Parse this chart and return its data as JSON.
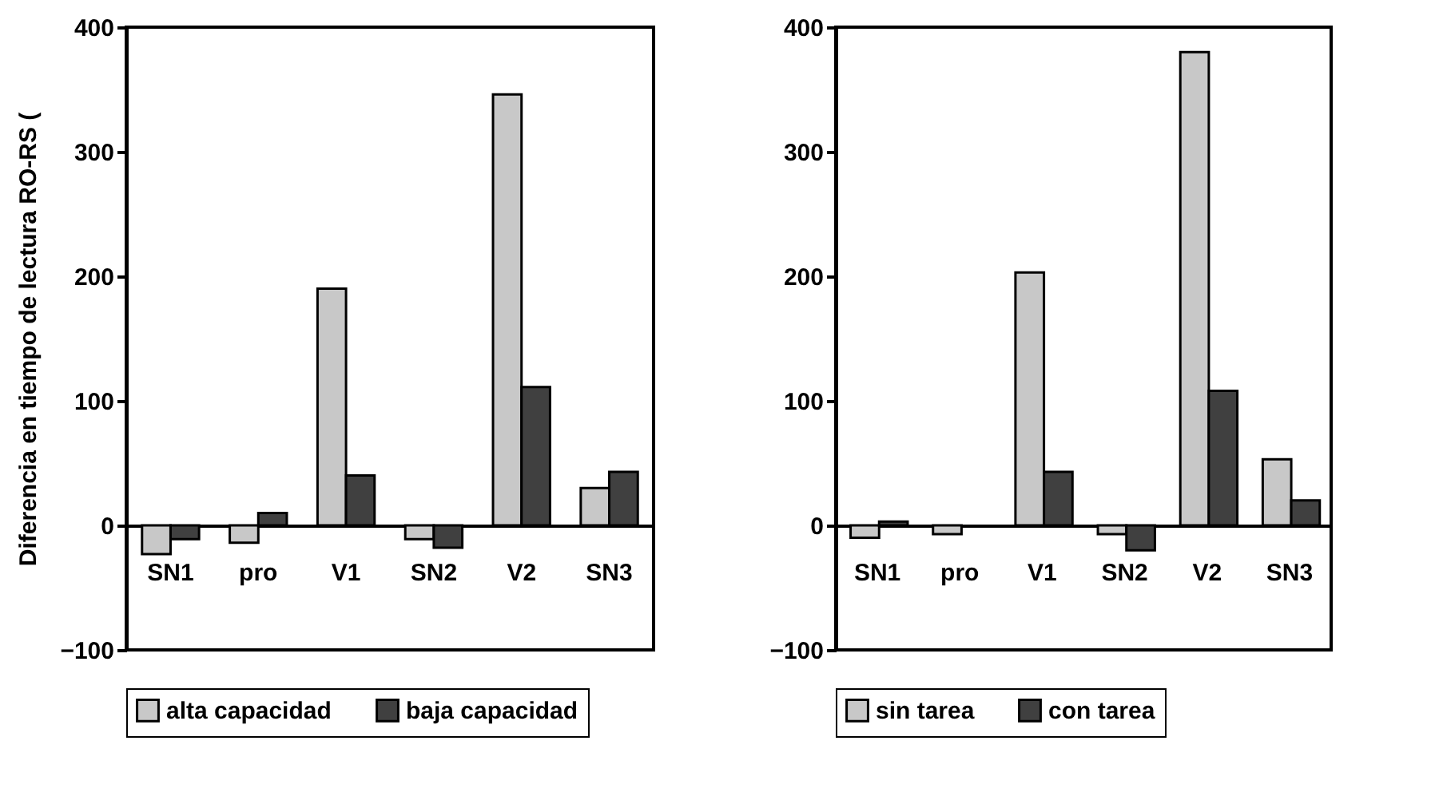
{
  "chart_data": [
    {
      "type": "bar",
      "ylabel": "Diferencia en tiempo de lectura RO-RS (",
      "categories": [
        "SN1",
        "pro",
        "V1",
        "SN2",
        "V2",
        "SN3"
      ],
      "series": [
        {
          "name": "alta capacidad",
          "color": "#c8c8c8",
          "values": [
            -23,
            -14,
            190,
            -11,
            346,
            30
          ]
        },
        {
          "name": "baja capacidad",
          "color": "#404040",
          "values": [
            -11,
            10,
            40,
            -18,
            111,
            43
          ]
        }
      ],
      "ylim": [
        -100,
        400
      ],
      "yticks": [
        -100,
        0,
        100,
        200,
        300,
        400
      ],
      "grid": false,
      "legend": "bottom"
    },
    {
      "type": "bar",
      "categories": [
        "SN1",
        "pro",
        "V1",
        "SN2",
        "V2",
        "SN3"
      ],
      "series": [
        {
          "name": "sin tarea",
          "color": "#c8c8c8",
          "values": [
            -10,
            -7,
            203,
            -7,
            380,
            53
          ]
        },
        {
          "name": "con tarea",
          "color": "#404040",
          "values": [
            3,
            null,
            43,
            -20,
            108,
            20
          ]
        }
      ],
      "ylim": [
        -100,
        400
      ],
      "yticks": [
        -100,
        0,
        100,
        200,
        300,
        400
      ],
      "grid": false,
      "legend": "bottom"
    }
  ]
}
